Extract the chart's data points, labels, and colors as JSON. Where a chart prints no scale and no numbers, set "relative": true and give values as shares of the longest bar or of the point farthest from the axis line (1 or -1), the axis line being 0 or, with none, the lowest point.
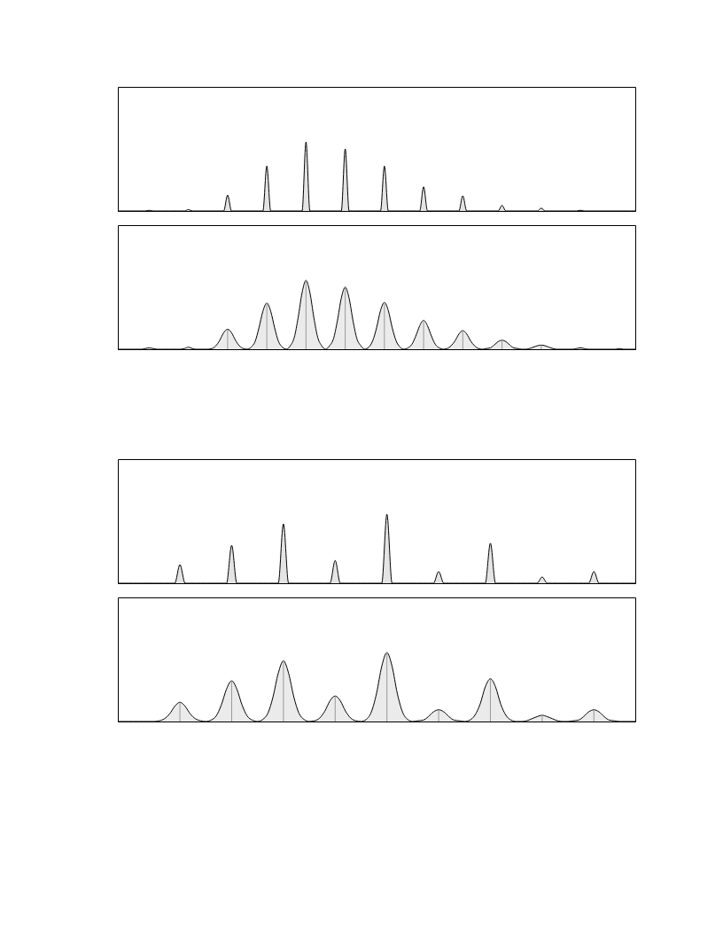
{
  "chart_data": [
    {
      "type": "area",
      "relative": true,
      "categories": [
        null,
        null,
        null,
        null,
        null,
        null,
        null,
        null,
        null,
        null,
        null,
        null,
        null,
        null,
        null,
        null,
        null,
        null,
        null,
        null,
        null,
        null,
        null,
        null,
        null,
        null,
        null,
        null,
        null,
        null,
        null,
        null,
        null,
        null,
        null,
        null,
        null,
        null,
        null,
        null,
        null,
        null,
        null,
        null,
        null,
        null,
        null,
        null,
        null,
        null,
        null,
        null,
        null,
        null,
        null,
        null,
        null,
        null,
        null,
        null,
        null,
        null,
        null,
        null,
        null,
        null,
        null,
        null,
        null,
        null,
        null,
        null,
        null,
        null,
        null,
        null,
        null,
        null,
        null,
        null,
        null,
        null,
        null,
        null,
        null,
        null,
        null,
        null,
        null,
        null,
        null,
        null,
        null,
        null,
        null,
        null,
        null,
        null,
        null,
        null,
        null,
        null,
        null,
        null,
        null,
        null,
        null,
        null,
        null,
        null,
        null,
        null,
        null,
        null,
        null,
        null,
        null,
        null,
        null,
        null,
        null,
        null,
        null,
        null,
        null,
        null,
        null,
        null,
        null,
        null,
        null,
        null,
        null
      ],
      "series": [
        {
          "color": "#d9d9d9",
          "values": [
            0,
            0,
            0,
            0,
            0,
            0,
            0,
            0,
            0.01,
            0,
            0,
            0,
            0,
            0,
            0,
            0,
            0,
            0,
            0.02,
            0,
            0,
            0,
            0,
            0,
            0,
            0,
            0,
            0,
            0.23,
            0,
            0,
            0,
            0,
            0,
            0,
            0,
            0,
            0,
            0.65,
            0,
            0,
            0,
            0,
            0,
            0,
            0,
            0,
            0,
            1,
            0,
            0,
            0,
            0,
            0,
            0,
            0,
            0,
            0,
            0.9,
            0,
            0,
            0,
            0,
            0,
            0,
            0,
            0,
            0,
            0.65,
            0,
            0,
            0,
            0,
            0,
            0,
            0,
            0,
            0,
            0.35,
            0,
            0,
            0,
            0,
            0,
            0,
            0,
            0,
            0,
            0.22,
            0,
            0,
            0,
            0,
            0,
            0,
            0,
            0,
            0,
            0.08,
            0,
            0,
            0,
            0,
            0,
            0,
            0,
            0,
            0,
            0.04,
            0,
            0,
            0,
            0,
            0,
            0,
            0,
            0,
            0,
            0.01,
            0,
            0,
            0,
            0,
            0,
            0,
            0,
            0,
            0,
            0,
            0,
            0,
            0,
            0
          ]
        }
      ]
    },
    {
      "type": "area",
      "relative": true,
      "categories": [
        null,
        null,
        null,
        null,
        null,
        null,
        null,
        null,
        null,
        null,
        null,
        null,
        null,
        null,
        null,
        null,
        null,
        null,
        null,
        null,
        null,
        null,
        null,
        null,
        null,
        null,
        null,
        null,
        null,
        null,
        null,
        null,
        null,
        null,
        null,
        null,
        null,
        null,
        null,
        null,
        null,
        null,
        null,
        null,
        null,
        null,
        null,
        null,
        null,
        null,
        null,
        null,
        null,
        null,
        null,
        null,
        null,
        null,
        null,
        null,
        null,
        null,
        null,
        null,
        null,
        null,
        null,
        null,
        null,
        null,
        null,
        null,
        null,
        null,
        null,
        null,
        null,
        null,
        null,
        null,
        null,
        null,
        null,
        null,
        null,
        null,
        null,
        null,
        null,
        null,
        null,
        null,
        null,
        null,
        null,
        null,
        null,
        null,
        null,
        null,
        null,
        null,
        null,
        null,
        null,
        null,
        null,
        null,
        null,
        null,
        null,
        null,
        null,
        null,
        null,
        null,
        null,
        null,
        null,
        null,
        null,
        null,
        null,
        null,
        null,
        null,
        null,
        null,
        null,
        null,
        null,
        null,
        null
      ],
      "series": [
        {
          "color": "#e3e3e3",
          "values": [
            0,
            0,
            0,
            0,
            0,
            0,
            0,
            0.01,
            0.02,
            0.01,
            0,
            0,
            0,
            0,
            0,
            0,
            0,
            0.01,
            0.03,
            0.01,
            0,
            0,
            0,
            0,
            0.01,
            0.05,
            0.13,
            0.24,
            0.29,
            0.24,
            0.13,
            0.05,
            0.01,
            0,
            0.03,
            0.11,
            0.31,
            0.55,
            0.67,
            0.55,
            0.31,
            0.11,
            0.03,
            0,
            0.05,
            0.17,
            0.46,
            0.82,
            1,
            0.82,
            0.46,
            0.17,
            0.05,
            0,
            0.05,
            0.15,
            0.41,
            0.74,
            0.9,
            0.74,
            0.41,
            0.15,
            0.05,
            0,
            0.03,
            0.12,
            0.31,
            0.56,
            0.68,
            0.56,
            0.31,
            0.12,
            0.03,
            0,
            0.02,
            0.07,
            0.19,
            0.34,
            0.42,
            0.34,
            0.19,
            0.07,
            0.02,
            0,
            0.01,
            0.05,
            0.12,
            0.22,
            0.27,
            0.22,
            0.12,
            0.05,
            0.01,
            0,
            0.01,
            0.02,
            0.06,
            0.11,
            0.13,
            0.11,
            0.06,
            0.02,
            0.01,
            0,
            0,
            0.01,
            0.03,
            0.05,
            0.06,
            0.05,
            0.03,
            0.01,
            0,
            0,
            0,
            0,
            0,
            0.01,
            0.02,
            0.01,
            0,
            0,
            0,
            0,
            0,
            0,
            0,
            0,
            0.01,
            0,
            0,
            0,
            0
          ]
        },
        {
          "type": "bar",
          "color": "#999999",
          "values": [
            null,
            null,
            null,
            null,
            null,
            null,
            null,
            null,
            null,
            null,
            null,
            null,
            null,
            null,
            null,
            null,
            null,
            null,
            null,
            null,
            null,
            null,
            null,
            null,
            null,
            null,
            null,
            null,
            0.29,
            null,
            null,
            null,
            null,
            null,
            null,
            null,
            null,
            null,
            0.67,
            null,
            null,
            null,
            null,
            null,
            null,
            null,
            null,
            null,
            1,
            null,
            null,
            null,
            null,
            null,
            null,
            null,
            null,
            null,
            0.9,
            null,
            null,
            null,
            null,
            null,
            null,
            null,
            null,
            null,
            0.68,
            null,
            null,
            null,
            null,
            null,
            null,
            null,
            null,
            null,
            0.42,
            null,
            null,
            null,
            null,
            null,
            null,
            null,
            null,
            null,
            0.27,
            null,
            null,
            null,
            null,
            null,
            null,
            null,
            null,
            null,
            0.13,
            null,
            null,
            null,
            null,
            null,
            null,
            null,
            null,
            null,
            0.06,
            null,
            null,
            null,
            null,
            null,
            null,
            null,
            null,
            null,
            null,
            null,
            null,
            null,
            null,
            null,
            null,
            null,
            null,
            null,
            null,
            null,
            null,
            null,
            null
          ]
        }
      ]
    },
    {
      "type": "area",
      "relative": true,
      "categories": [
        null,
        null,
        null,
        null,
        null,
        null,
        null,
        null,
        null,
        null,
        null,
        null,
        null,
        null,
        null,
        null,
        null,
        null,
        null,
        null,
        null,
        null,
        null,
        null,
        null,
        null,
        null,
        null,
        null,
        null,
        null,
        null,
        null,
        null,
        null,
        null,
        null,
        null,
        null,
        null,
        null,
        null,
        null,
        null,
        null,
        null,
        null,
        null,
        null,
        null,
        null,
        null,
        null,
        null,
        null,
        null,
        null,
        null,
        null,
        null,
        null,
        null,
        null,
        null,
        null,
        null,
        null,
        null,
        null,
        null,
        null,
        null,
        null,
        null,
        null,
        null,
        null,
        null,
        null,
        null,
        null,
        null,
        null,
        null,
        null,
        null,
        null,
        null,
        null,
        null,
        null,
        null,
        null,
        null,
        null,
        null,
        null,
        null,
        null,
        null,
        null
      ],
      "series": [
        {
          "color": "#d9d9d9",
          "values": [
            0,
            0,
            0,
            0,
            0,
            0,
            0,
            0,
            0,
            0,
            0,
            0,
            0.27,
            0,
            0,
            0,
            0,
            0,
            0,
            0,
            0,
            0,
            0.55,
            0,
            0,
            0,
            0,
            0,
            0,
            0,
            0,
            0,
            0.86,
            0,
            0,
            0,
            0,
            0,
            0,
            0,
            0,
            0,
            0.33,
            0,
            0,
            0,
            0,
            0,
            0,
            0,
            0,
            0,
            1,
            0,
            0,
            0,
            0,
            0,
            0,
            0,
            0,
            0,
            0.17,
            0,
            0,
            0,
            0,
            0,
            0,
            0,
            0,
            0,
            0.58,
            0,
            0,
            0,
            0,
            0,
            0,
            0,
            0,
            0,
            0.09,
            0,
            0,
            0,
            0,
            0,
            0,
            0,
            0,
            0,
            0.17,
            0,
            0,
            0,
            0,
            0,
            0,
            0,
            0
          ]
        }
      ]
    },
    {
      "type": "area",
      "relative": true,
      "categories": [
        null,
        null,
        null,
        null,
        null,
        null,
        null,
        null,
        null,
        null,
        null,
        null,
        null,
        null,
        null,
        null,
        null,
        null,
        null,
        null,
        null,
        null,
        null,
        null,
        null,
        null,
        null,
        null,
        null,
        null,
        null,
        null,
        null,
        null,
        null,
        null,
        null,
        null,
        null,
        null,
        null,
        null,
        null,
        null,
        null,
        null,
        null,
        null,
        null,
        null,
        null,
        null,
        null,
        null,
        null,
        null,
        null,
        null,
        null,
        null,
        null,
        null,
        null,
        null,
        null,
        null,
        null,
        null,
        null,
        null,
        null,
        null,
        null,
        null,
        null,
        null,
        null,
        null,
        null,
        null,
        null,
        null,
        null,
        null,
        null,
        null,
        null,
        null,
        null,
        null,
        null,
        null,
        null,
        null,
        null,
        null,
        null,
        null,
        null,
        null,
        null
      ],
      "series": [
        {
          "color": "#e3e3e3",
          "values": [
            0,
            0,
            0,
            0,
            0,
            0,
            0,
            0,
            0.01,
            0.04,
            0.11,
            0.22,
            0.28,
            0.22,
            0.11,
            0.04,
            0.01,
            0,
            0.02,
            0.08,
            0.24,
            0.47,
            0.59,
            0.47,
            0.24,
            0.08,
            0.02,
            0,
            0.03,
            0.12,
            0.36,
            0.7,
            0.88,
            0.7,
            0.36,
            0.12,
            0.03,
            0,
            0.01,
            0.05,
            0.15,
            0.3,
            0.37,
            0.3,
            0.15,
            0.05,
            0.01,
            0,
            0.03,
            0.14,
            0.41,
            0.8,
            1,
            0.8,
            0.41,
            0.14,
            0.03,
            0,
            0.01,
            0.02,
            0.07,
            0.14,
            0.17,
            0.14,
            0.07,
            0.02,
            0.01,
            0,
            0.02,
            0.09,
            0.25,
            0.5,
            0.62,
            0.5,
            0.25,
            0.09,
            0.02,
            0,
            0,
            0.01,
            0.04,
            0.07,
            0.09,
            0.07,
            0.04,
            0.01,
            0,
            0,
            0.01,
            0.02,
            0.07,
            0.14,
            0.17,
            0.14,
            0.07,
            0.02,
            0.01,
            0,
            0,
            0,
            0
          ]
        },
        {
          "type": "bar",
          "color": "#999999",
          "values": [
            null,
            null,
            null,
            null,
            null,
            null,
            null,
            null,
            null,
            null,
            null,
            null,
            0.28,
            null,
            null,
            null,
            null,
            null,
            null,
            null,
            null,
            null,
            0.59,
            null,
            null,
            null,
            null,
            null,
            null,
            null,
            null,
            null,
            0.88,
            null,
            null,
            null,
            null,
            null,
            null,
            null,
            null,
            null,
            0.37,
            null,
            null,
            null,
            null,
            null,
            null,
            null,
            null,
            null,
            1,
            null,
            null,
            null,
            null,
            null,
            null,
            null,
            null,
            null,
            0.17,
            null,
            null,
            null,
            null,
            null,
            null,
            null,
            null,
            null,
            0.62,
            null,
            null,
            null,
            null,
            null,
            null,
            null,
            null,
            null,
            0.09,
            null,
            null,
            null,
            null,
            null,
            null,
            null,
            null,
            null,
            0.17,
            null,
            null,
            null,
            null,
            null,
            null,
            null,
            null
          ]
        }
      ]
    }
  ]
}
